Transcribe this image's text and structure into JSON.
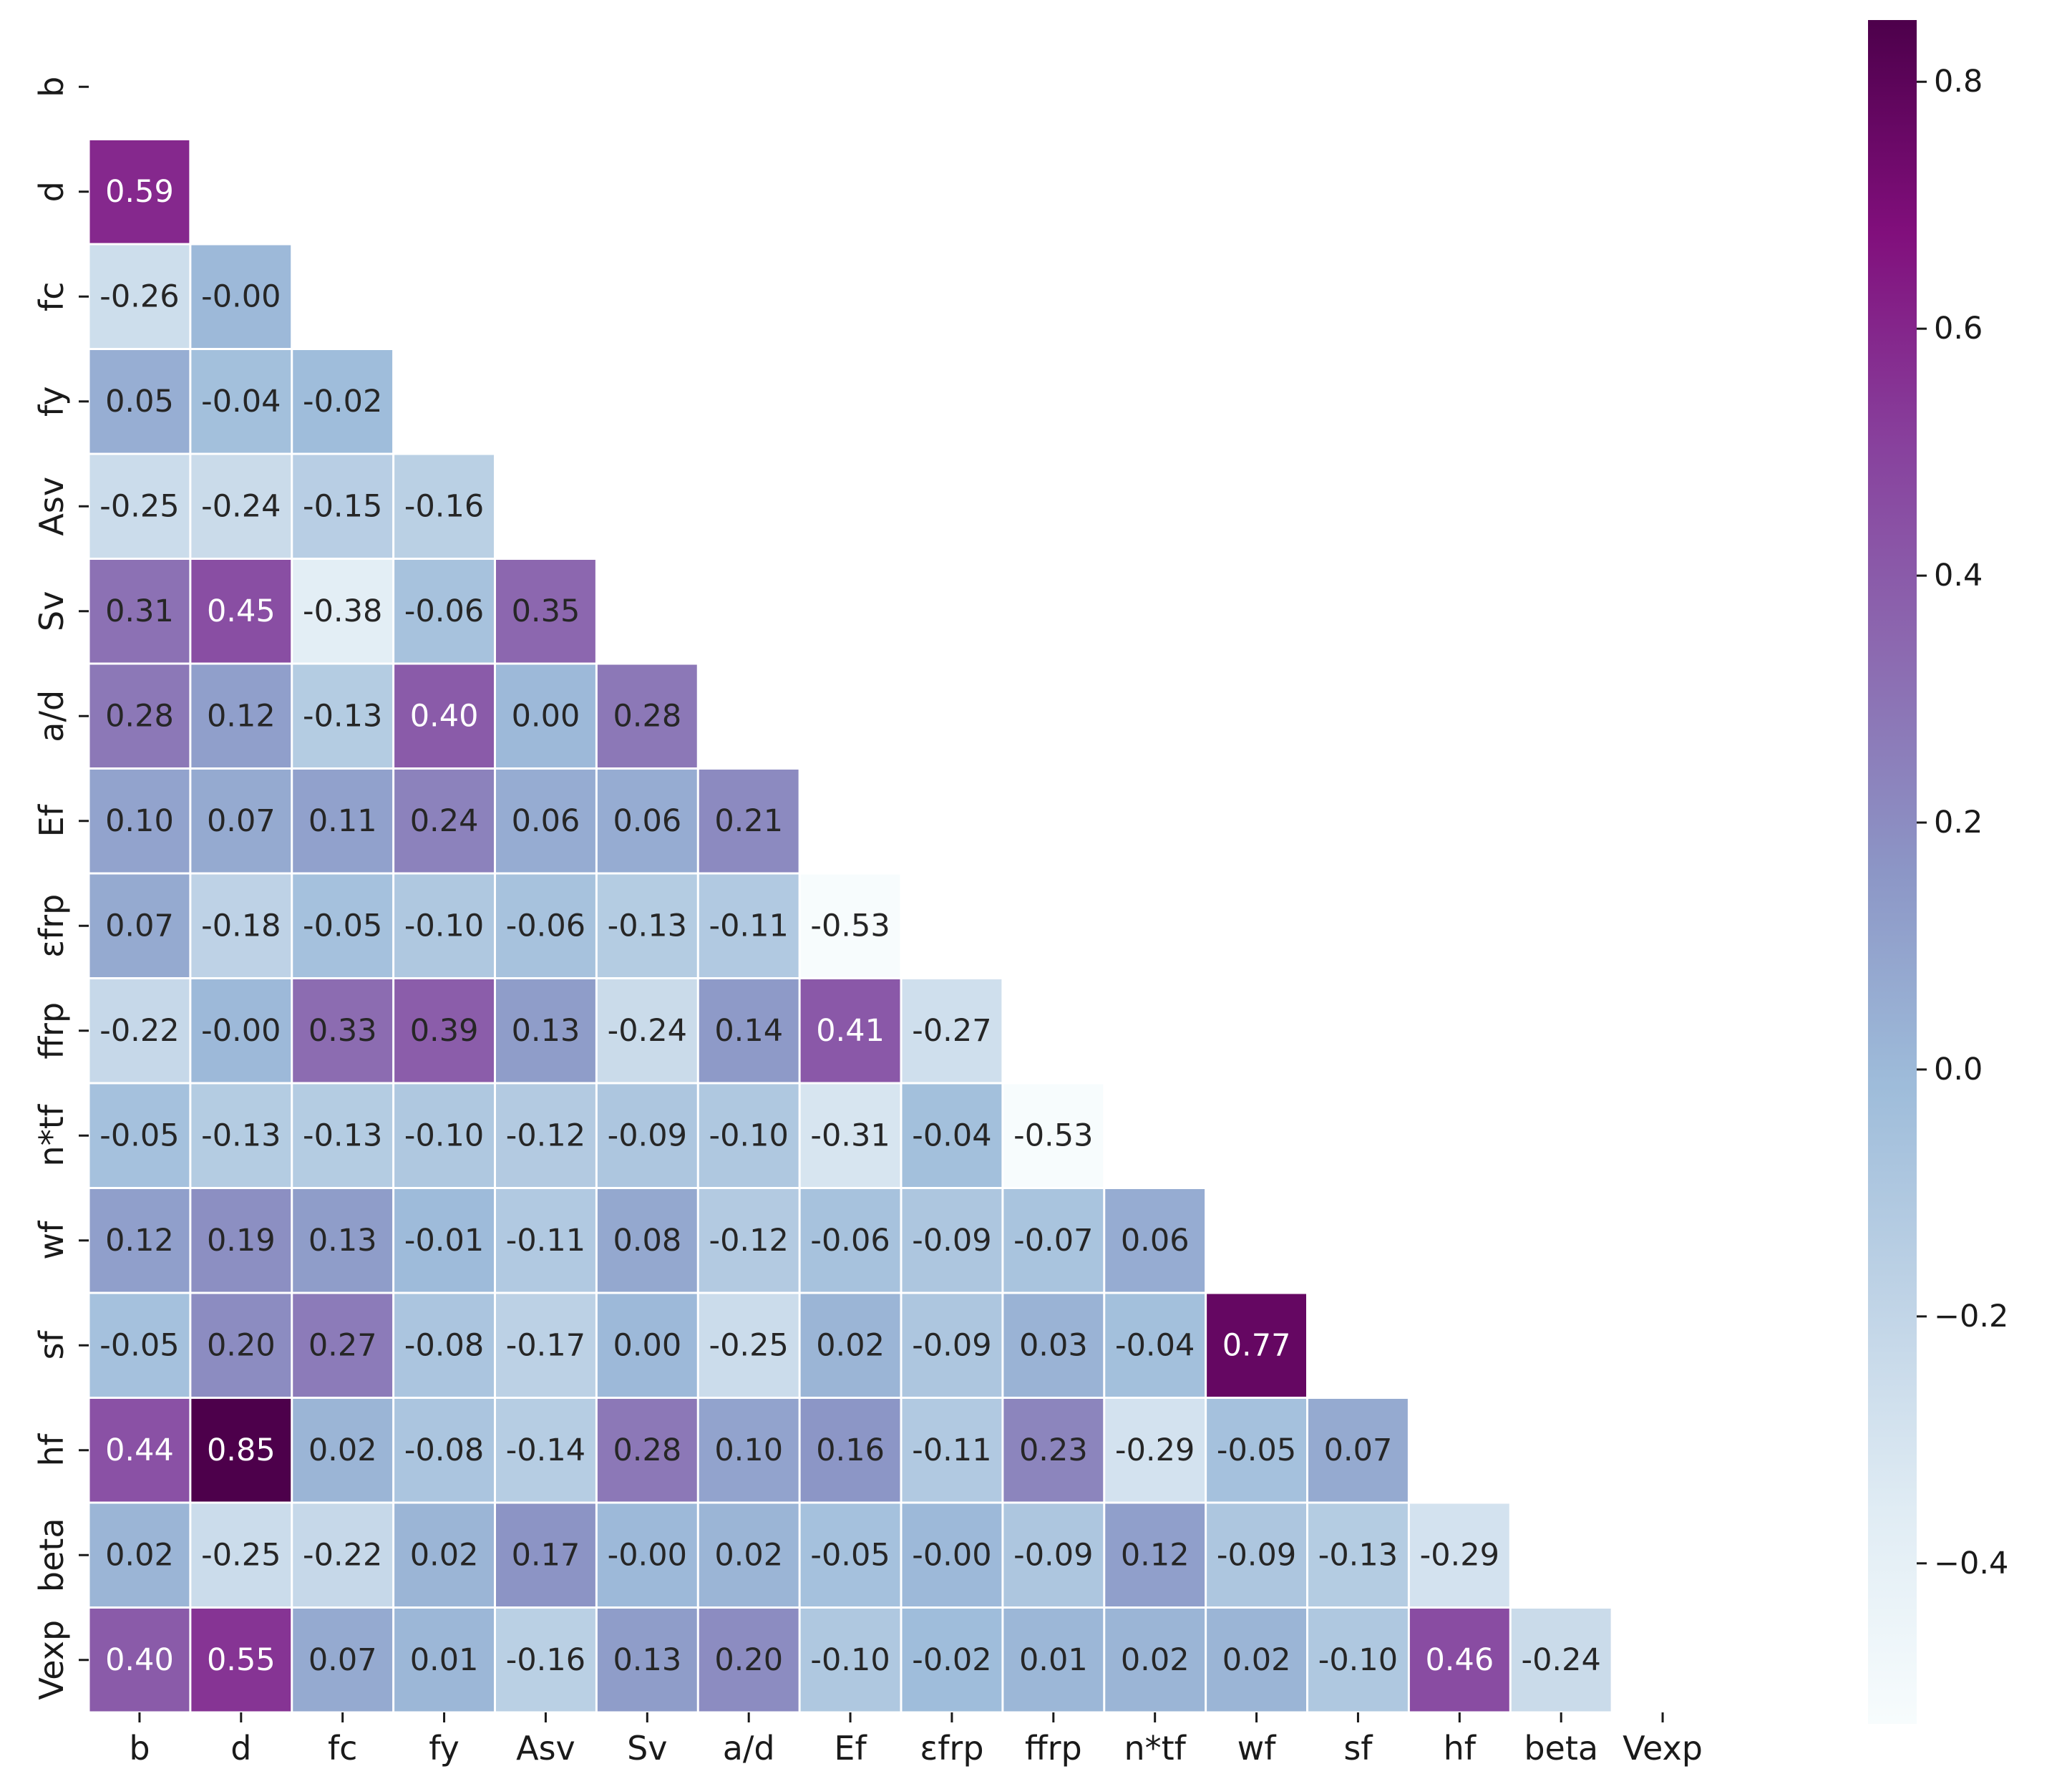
{
  "chart_data": {
    "type": "heatmap",
    "title": "",
    "xlabel": "",
    "ylabel": "",
    "variables": [
      "b",
      "d",
      "fc",
      "fy",
      "Asv",
      "Sv",
      "a/d",
      "Ef",
      "εfrp",
      "ffrp",
      "n*tf",
      "wf",
      "sf",
      "hf",
      "beta",
      "Vexp"
    ],
    "mask": "upper-triangle-and-diagonal",
    "rows": [
      [],
      [
        "0.59"
      ],
      [
        "-0.26",
        "-0.00"
      ],
      [
        "0.05",
        "-0.04",
        "-0.02"
      ],
      [
        "-0.25",
        "-0.24",
        "-0.15",
        "-0.16"
      ],
      [
        "0.31",
        "0.45",
        "-0.38",
        "-0.06",
        "0.35"
      ],
      [
        "0.28",
        "0.12",
        "-0.13",
        "0.40",
        "0.00",
        "0.28"
      ],
      [
        "0.10",
        "0.07",
        "0.11",
        "0.24",
        "0.06",
        "0.06",
        "0.21"
      ],
      [
        "0.07",
        "-0.18",
        "-0.05",
        "-0.10",
        "-0.06",
        "-0.13",
        "-0.11",
        "-0.53"
      ],
      [
        "-0.22",
        "-0.00",
        "0.33",
        "0.39",
        "0.13",
        "-0.24",
        "0.14",
        "0.41",
        "-0.27"
      ],
      [
        "-0.05",
        "-0.13",
        "-0.13",
        "-0.10",
        "-0.12",
        "-0.09",
        "-0.10",
        "-0.31",
        "-0.04",
        "-0.53"
      ],
      [
        "0.12",
        "0.19",
        "0.13",
        "-0.01",
        "-0.11",
        "0.08",
        "-0.12",
        "-0.06",
        "-0.09",
        "-0.07",
        "0.06"
      ],
      [
        "-0.05",
        "0.20",
        "0.27",
        "-0.08",
        "-0.17",
        "0.00",
        "-0.25",
        "0.02",
        "-0.09",
        "0.03",
        "-0.04",
        "0.77"
      ],
      [
        "0.44",
        "0.85",
        "0.02",
        "-0.08",
        "-0.14",
        "0.28",
        "0.10",
        "0.16",
        "-0.11",
        "0.23",
        "-0.29",
        "-0.05",
        "0.07"
      ],
      [
        "0.02",
        "-0.25",
        "-0.22",
        "0.02",
        "0.17",
        "-0.00",
        "0.02",
        "-0.05",
        "-0.00",
        "-0.09",
        "0.12",
        "-0.09",
        "-0.13",
        "-0.29"
      ],
      [
        "0.40",
        "0.55",
        "0.07",
        "0.01",
        "-0.16",
        "0.13",
        "0.20",
        "-0.10",
        "-0.02",
        "0.01",
        "0.02",
        "0.02",
        "-0.10",
        "0.46",
        "-0.24"
      ]
    ],
    "colormap": "BuPu",
    "colormap_colors": [
      "#f7fcfd",
      "#e0ecf4",
      "#bfd3e6",
      "#9ebcda",
      "#8c96c6",
      "#8c6bb1",
      "#88419d",
      "#810f7c",
      "#4d004b"
    ],
    "vmin": -0.53,
    "vmax": 0.85,
    "colorbar": {
      "ticks": [
        -0.4,
        -0.2,
        0.0,
        0.2,
        0.4,
        0.6,
        0.8
      ],
      "tick_labels": [
        "−0.4",
        "−0.2",
        "0.0",
        "0.2",
        "0.4",
        "0.6",
        "0.8"
      ]
    },
    "grid": "white cell separators",
    "legend_position": "right"
  }
}
